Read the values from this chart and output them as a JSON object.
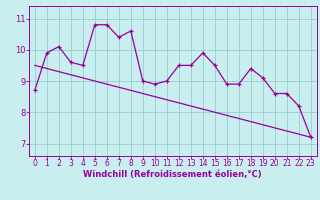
{
  "xlabel": "Windchill (Refroidissement éolien,°C)",
  "background_color": "#c8eef0",
  "line_color": "#990099",
  "grid_color": "#99cccc",
  "x_ticks": [
    0,
    1,
    2,
    3,
    4,
    5,
    6,
    7,
    8,
    9,
    10,
    11,
    12,
    13,
    14,
    15,
    16,
    17,
    18,
    19,
    20,
    21,
    22,
    23
  ],
  "y_ticks": [
    7,
    8,
    9,
    10,
    11
  ],
  "ylim": [
    6.6,
    11.4
  ],
  "xlim": [
    -0.5,
    23.5
  ],
  "data_x": [
    0,
    1,
    2,
    3,
    4,
    5,
    6,
    7,
    8,
    9,
    10,
    11,
    12,
    13,
    14,
    15,
    16,
    17,
    18,
    19,
    20,
    21,
    22,
    23
  ],
  "data_y": [
    8.7,
    9.9,
    10.1,
    9.6,
    9.5,
    10.8,
    10.8,
    10.4,
    10.6,
    9.0,
    8.9,
    9.0,
    9.5,
    9.5,
    9.9,
    9.5,
    8.9,
    8.9,
    9.4,
    9.1,
    8.6,
    8.6,
    8.2,
    7.2
  ],
  "trend_x": [
    0,
    23
  ],
  "trend_y": [
    9.5,
    7.2
  ],
  "tick_fontsize": 5.5,
  "xlabel_fontsize": 6.0
}
